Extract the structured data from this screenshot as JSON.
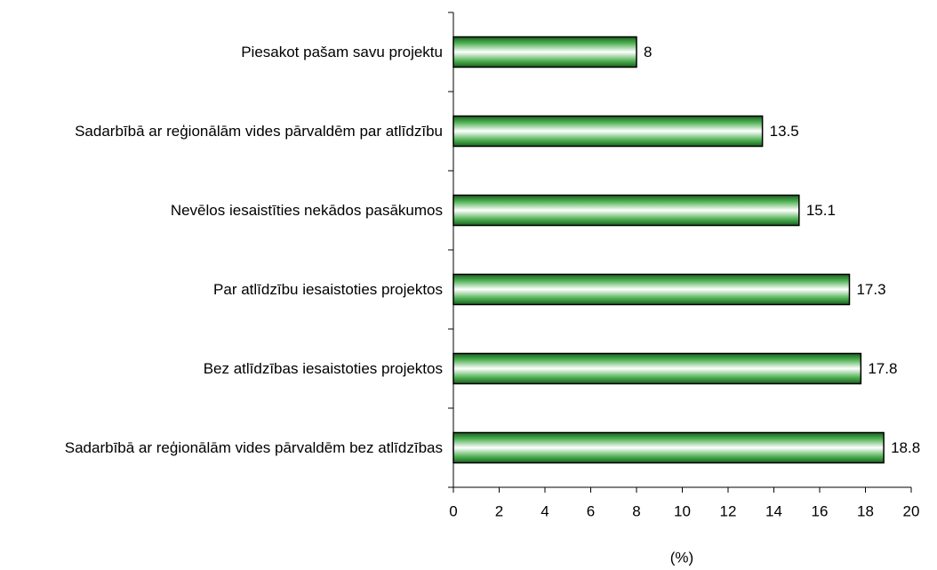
{
  "chart_data": {
    "type": "bar",
    "orientation": "horizontal",
    "categories": [
      "Piesakot pašam savu projektu",
      "Sadarbībā ar reģionālām vides pārvaldēm par atlīdzību",
      "Nevēlos iesaistīties nekādos pasākumos",
      "Par atlīdzību iesaistoties projektos",
      "Bez atlīdzības iesaistoties projektos",
      "Sadarbībā ar reģionālām vides pārvaldēm bez atlīdzības"
    ],
    "values": [
      8,
      13.5,
      15.1,
      17.3,
      17.8,
      18.8
    ],
    "color": "#2e7d32",
    "xlabel": "(%)",
    "xlim": [
      0,
      20
    ],
    "xticks": [
      0,
      2,
      4,
      6,
      8,
      10,
      12,
      14,
      16,
      18,
      20
    ],
    "grid": false
  }
}
